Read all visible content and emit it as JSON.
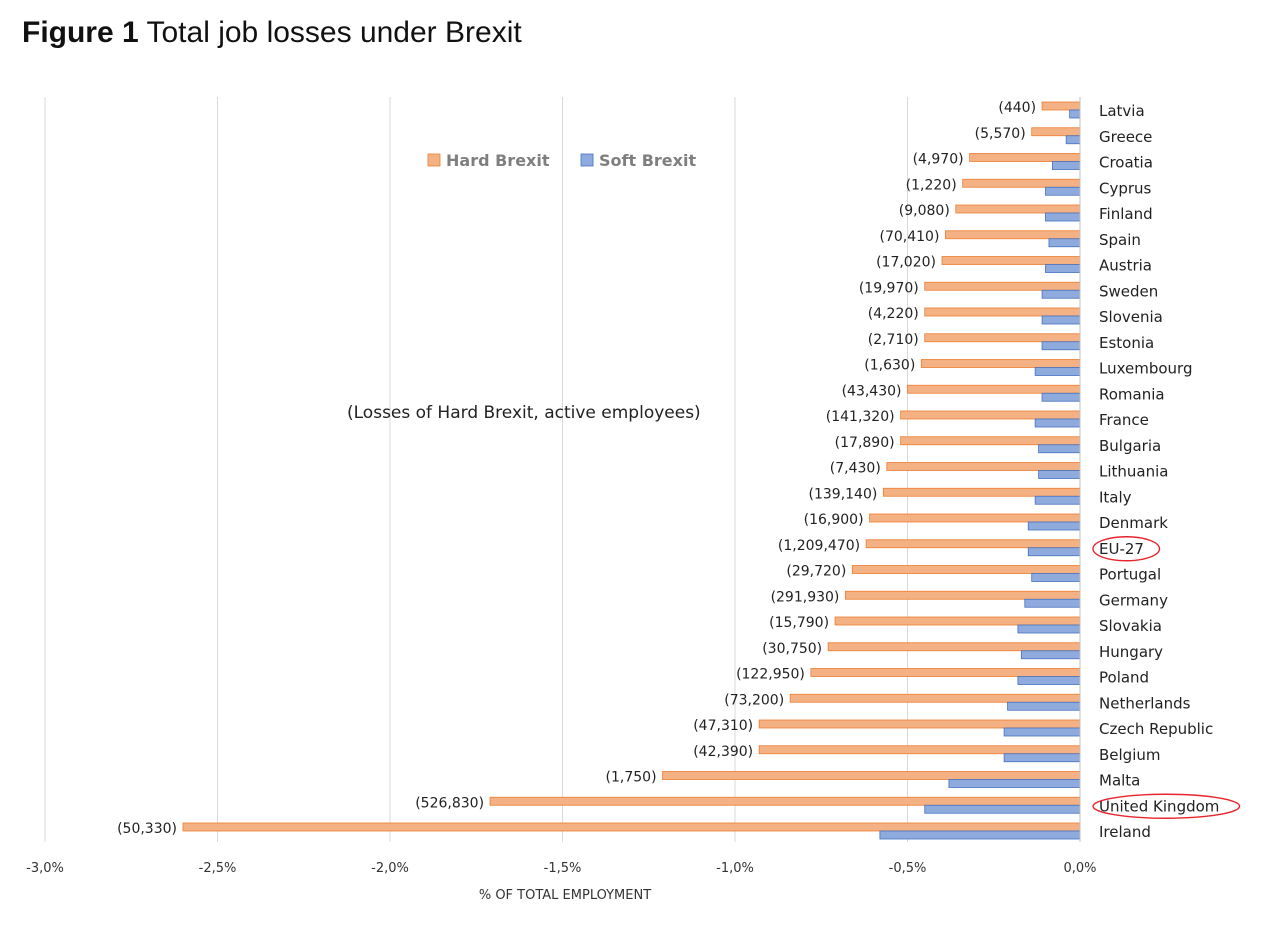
{
  "figure": {
    "number": "Figure 1",
    "title": "Total job losses under Brexit"
  },
  "chart_data": {
    "type": "bar",
    "orientation": "horizontal",
    "xlabel": "% OF TOTAL EMPLOYMENT",
    "xlim": [
      -3.0,
      0.0
    ],
    "x_ticks": [
      -3.0,
      -2.5,
      -2.0,
      -1.5,
      -1.0,
      -0.5,
      0.0
    ],
    "x_tick_labels": [
      "-3,0%",
      "-2,5%",
      "-2,0%",
      "-1,5%",
      "-1,0%",
      "-0,5%",
      "0,0%"
    ],
    "grid": true,
    "legend_position": "top-right",
    "annotation": "(Losses of Hard Brexit, active employees)",
    "highlighted_categories": [
      "EU-27",
      "United Kingdom"
    ],
    "categories": [
      "Latvia",
      "Greece",
      "Croatia",
      "Cyprus",
      "Finland",
      "Spain",
      "Austria",
      "Sweden",
      "Slovenia",
      "Estonia",
      "Luxembourg",
      "Romania",
      "France",
      "Bulgaria",
      "Lithuania",
      "Italy",
      "Denmark",
      "EU-27",
      "Portugal",
      "Germany",
      "Slovakia",
      "Hungary",
      "Poland",
      "Netherlands",
      "Czech Republic",
      "Belgium",
      "Malta",
      "United Kingdom",
      "Ireland"
    ],
    "series": [
      {
        "name": "Hard Brexit",
        "color": "#f4b183",
        "edge_color": "#ed7d31",
        "values": [
          -0.11,
          -0.14,
          -0.32,
          -0.34,
          -0.36,
          -0.39,
          -0.4,
          -0.45,
          -0.45,
          -0.45,
          -0.46,
          -0.5,
          -0.52,
          -0.52,
          -0.56,
          -0.57,
          -0.61,
          -0.62,
          -0.66,
          -0.68,
          -0.71,
          -0.73,
          -0.78,
          -0.84,
          -0.93,
          -0.93,
          -1.21,
          -1.71,
          -2.6
        ],
        "data_labels": [
          "(440)",
          "(5,570)",
          "(4,970)",
          "(1,220)",
          "(9,080)",
          "(70,410)",
          "(17,020)",
          "(19,970)",
          "(4,220)",
          "(2,710)",
          "(1,630)",
          "(43,430)",
          "(141,320)",
          "(17,890)",
          "(7,430)",
          "(139,140)",
          "(16,900)",
          "(1,209,470)",
          "(29,720)",
          "(291,930)",
          "(15,790)",
          "(30,750)",
          "(122,950)",
          "(73,200)",
          "(47,310)",
          "(42,390)",
          "(1,750)",
          "(526,830)",
          "(50,330)"
        ]
      },
      {
        "name": "Soft Brexit",
        "color": "#8faadc",
        "edge_color": "#4472c4",
        "values": [
          -0.03,
          -0.04,
          -0.08,
          -0.1,
          -0.1,
          -0.09,
          -0.1,
          -0.11,
          -0.11,
          -0.11,
          -0.13,
          -0.11,
          -0.13,
          -0.12,
          -0.12,
          -0.13,
          -0.15,
          -0.15,
          -0.14,
          -0.16,
          -0.18,
          -0.17,
          -0.18,
          -0.21,
          -0.22,
          -0.22,
          -0.38,
          -0.45,
          -0.58
        ]
      }
    ]
  }
}
